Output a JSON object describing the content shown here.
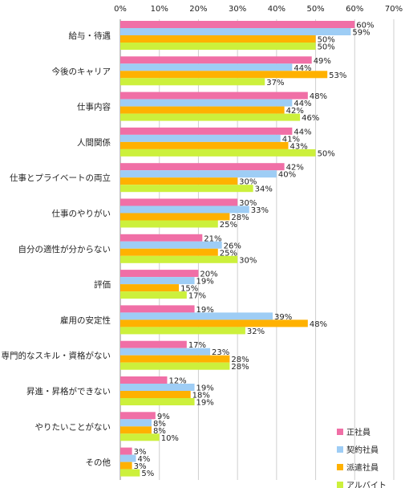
{
  "chart_data": {
    "type": "bar",
    "orientation": "horizontal",
    "xlim": [
      0,
      70
    ],
    "x_ticks": [
      "0%",
      "10%",
      "20%",
      "30%",
      "40%",
      "50%",
      "60%",
      "70%"
    ],
    "grid": true,
    "legend_position": "bottom-right",
    "categories": [
      "給与・待遇",
      "今後のキャリア",
      "仕事内容",
      "人間関係",
      "仕事とプライベートの両立",
      "仕事のやりがい",
      "自分の適性が分からない",
      "評価",
      "雇用の安定性",
      "専門的なスキル・資格がない",
      "昇進・昇格ができない",
      "やりたいことがない",
      "その他"
    ],
    "series": [
      {
        "name": "正社員",
        "color": "#f06fa6",
        "values": [
          60,
          49,
          48,
          44,
          42,
          30,
          21,
          20,
          19,
          17,
          12,
          9,
          3
        ]
      },
      {
        "name": "契約社員",
        "color": "#9ecdf5",
        "values": [
          59,
          44,
          44,
          41,
          40,
          33,
          26,
          19,
          39,
          23,
          19,
          8,
          4
        ]
      },
      {
        "name": "派遣社員",
        "color": "#ffb100",
        "values": [
          50,
          53,
          42,
          43,
          30,
          28,
          25,
          15,
          48,
          28,
          18,
          8,
          3
        ]
      },
      {
        "name": "アルバイト",
        "color": "#ccf03c",
        "values": [
          50,
          37,
          46,
          50,
          34,
          25,
          30,
          17,
          32,
          28,
          19,
          10,
          5
        ]
      }
    ]
  }
}
